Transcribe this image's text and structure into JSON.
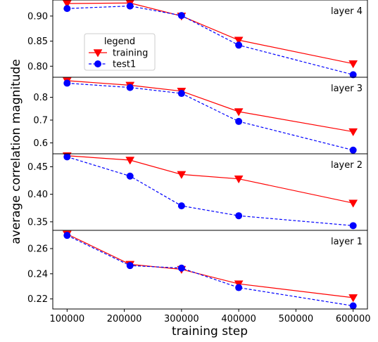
{
  "chart_data": {
    "type": "line",
    "xlabel": "training step",
    "ylabel": "average correlation magnitude",
    "x": [
      100000,
      210000,
      300000,
      400000,
      600000
    ],
    "xlim": [
      75000,
      625000
    ],
    "xticks": [
      100000,
      200000,
      300000,
      400000,
      500000,
      600000
    ],
    "xtick_labels": [
      "100000",
      "200000",
      "300000",
      "400000",
      "500000",
      "600000"
    ],
    "grid": false,
    "legend": {
      "title": "legend",
      "placement": "upper-left of top panel",
      "entries": [
        "training",
        "test1"
      ]
    },
    "styles": {
      "training": {
        "color": "#ff0000",
        "marker": "triangle-down",
        "line": "solid"
      },
      "test1": {
        "color": "#0000ff",
        "marker": "circle",
        "line": "dashed"
      }
    },
    "panels": [
      {
        "label": "layer 4",
        "ylim": [
          0.778,
          0.932
        ],
        "yticks": [
          0.8,
          0.85,
          0.9
        ],
        "ytick_labels": [
          "0.80",
          "0.85",
          "0.90"
        ],
        "series": [
          {
            "name": "training",
            "values": [
              0.925,
              0.926,
              0.9,
              0.852,
              0.805
            ]
          },
          {
            "name": "test1",
            "values": [
              0.915,
              0.92,
              0.901,
              0.842,
              0.783
            ]
          }
        ]
      },
      {
        "label": "layer 3",
        "ylim": [
          0.552,
          0.888
        ],
        "yticks": [
          0.6,
          0.7,
          0.8
        ],
        "ytick_labels": [
          "0.6",
          "0.7",
          "0.8"
        ],
        "series": [
          {
            "name": "training",
            "values": [
              0.873,
              0.853,
              0.827,
              0.737,
              0.649
            ]
          },
          {
            "name": "test1",
            "values": [
              0.862,
              0.843,
              0.817,
              0.694,
              0.568
            ]
          }
        ]
      },
      {
        "label": "layer 2",
        "ylim": [
          0.3345,
          0.4735
        ],
        "yticks": [
          0.35,
          0.4,
          0.45
        ],
        "ytick_labels": [
          "0.35",
          "0.40",
          "0.45"
        ],
        "series": [
          {
            "name": "training",
            "values": [
              0.47,
              0.462,
              0.436,
              0.428,
              0.384
            ]
          },
          {
            "name": "test1",
            "values": [
              0.468,
              0.433,
              0.379,
              0.361,
              0.343
            ]
          }
        ]
      },
      {
        "label": "layer 1",
        "ylim": [
          0.212,
          0.2745
        ],
        "yticks": [
          0.22,
          0.24,
          0.26
        ],
        "ytick_labels": [
          "0.22",
          "0.24",
          "0.26"
        ],
        "series": [
          {
            "name": "training",
            "values": [
              0.2715,
              0.2475,
              0.2435,
              0.232,
              0.221
            ]
          },
          {
            "name": "test1",
            "values": [
              0.2705,
              0.2465,
              0.2445,
              0.229,
              0.2145
            ]
          }
        ]
      }
    ]
  }
}
